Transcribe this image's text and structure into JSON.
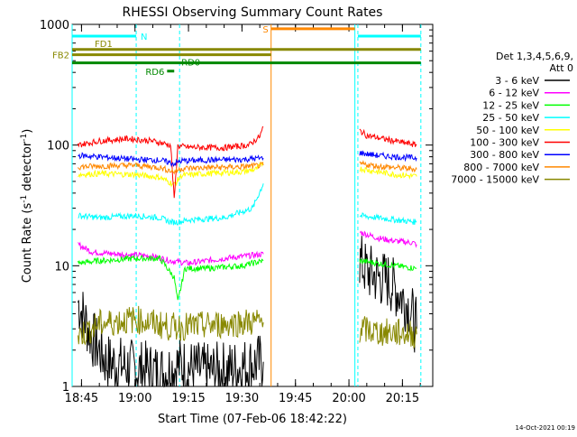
{
  "chart_data": {
    "type": "line",
    "title": "RHESSI Observing Summary Count Rates",
    "xlabel": "Start Time (07-Feb-06 18:42:22)",
    "ylabel_parts": [
      "Count Rate (s",
      "-1",
      " detector",
      "-1",
      ")"
    ],
    "y_scale": "log",
    "ylim": [
      1,
      1000
    ],
    "xlim": [
      "18:42:22",
      "20:23:30"
    ],
    "x_ticks": [
      "18:45",
      "19:00",
      "19:15",
      "19:30",
      "19:45",
      "20:00",
      "20:15"
    ],
    "y_tick_labels": [
      "1",
      "10",
      "100",
      "1000"
    ],
    "legend_title": [
      "Det 1,3,4,5,6,9,",
      "Att 0"
    ],
    "legend_position": "right",
    "grid": false,
    "series": [
      {
        "name": "3 - 6 keV",
        "color": "#000000",
        "segments": [
          {
            "x": [
              "18:44",
              "18:48",
              "18:52",
              "19:00",
              "19:08",
              "19:12",
              "19:20",
              "19:28",
              "19:36"
            ],
            "y": [
              5,
              2.5,
              1.6,
              1.4,
              1.3,
              1.5,
              1.3,
              1.4,
              1.6
            ]
          },
          {
            "x": [
              "20:03",
              "20:05",
              "20:08",
              "20:11",
              "20:14",
              "20:17",
              "20:19"
            ],
            "y": [
              11,
              9,
              8,
              7.5,
              6,
              4.5,
              3
            ]
          }
        ]
      },
      {
        "name": "6 - 12 keV",
        "color": "#ff00ff",
        "segments": [
          {
            "x": [
              "18:44",
              "18:48",
              "18:55",
              "19:05",
              "19:10",
              "19:15",
              "19:25",
              "19:36"
            ],
            "y": [
              15,
              13,
              12.5,
              12,
              11,
              10.5,
              11.5,
              12.5
            ]
          },
          {
            "x": [
              "20:03",
              "20:08",
              "20:13",
              "20:18",
              "20:19"
            ],
            "y": [
              19,
              17,
              16,
              15.5,
              15
            ]
          }
        ]
      },
      {
        "name": "12 - 25 keV",
        "color": "#00ff00",
        "segments": [
          {
            "x": [
              "18:44",
              "18:50",
              "19:00",
              "19:07",
              "19:11",
              "19:12",
              "19:14",
              "19:20",
              "19:30",
              "19:36"
            ],
            "y": [
              10.5,
              11,
              11.5,
              11.5,
              8,
              5,
              9.5,
              9.5,
              10,
              11
            ]
          },
          {
            "x": [
              "20:03",
              "20:08",
              "20:13",
              "20:19"
            ],
            "y": [
              11,
              10.5,
              10,
              9.5
            ]
          }
        ]
      },
      {
        "name": "25 - 50 keV",
        "color": "#00ffff",
        "segments": [
          {
            "x": [
              "18:44",
              "18:50",
              "19:00",
              "19:07",
              "19:10",
              "19:12",
              "19:15",
              "19:25",
              "19:33",
              "19:36"
            ],
            "y": [
              26,
              25,
              26,
              25,
              23,
              23,
              24,
              25,
              30,
              48
            ]
          },
          {
            "x": [
              "20:03",
              "20:08",
              "20:13",
              "20:19"
            ],
            "y": [
              26,
              25,
              24,
              23
            ]
          }
        ]
      },
      {
        "name": "50 - 100 keV",
        "color": "#ffff00",
        "segments": [
          {
            "x": [
              "18:44",
              "18:50",
              "19:00",
              "19:07",
              "19:11",
              "19:13",
              "19:20",
              "19:30",
              "19:34",
              "19:36"
            ],
            "y": [
              57,
              58,
              57,
              54,
              47,
              56,
              58,
              60,
              63,
              72
            ]
          },
          {
            "x": [
              "20:03",
              "20:08",
              "20:13",
              "20:19"
            ],
            "y": [
              64,
              60,
              57,
              55
            ]
          }
        ]
      },
      {
        "name": "100 - 300 keV",
        "color": "#ff0000",
        "segments": [
          {
            "x": [
              "18:44",
              "18:50",
              "18:58",
              "19:05",
              "19:10",
              "19:11",
              "19:12",
              "19:15",
              "19:25",
              "19:32",
              "19:35",
              "19:36"
            ],
            "y": [
              100,
              108,
              113,
              108,
              100,
              35,
              98,
              96,
              95,
              100,
              118,
              142
            ]
          },
          {
            "x": [
              "20:03",
              "20:05",
              "20:10",
              "20:15",
              "20:19"
            ],
            "y": [
              132,
              120,
              112,
              105,
              100
            ]
          }
        ]
      },
      {
        "name": "300 - 800 keV",
        "color": "#0000ff",
        "segments": [
          {
            "x": [
              "18:44",
              "18:50",
              "19:00",
              "19:07",
              "19:11",
              "19:13",
              "19:20",
              "19:30",
              "19:36"
            ],
            "y": [
              82,
              80,
              76,
              75,
              70,
              74,
              75,
              76,
              78
            ]
          },
          {
            "x": [
              "20:03",
              "20:08",
              "20:13",
              "20:19"
            ],
            "y": [
              86,
              82,
              80,
              78
            ]
          }
        ]
      },
      {
        "name": "800 - 7000 keV",
        "color": "#ff8800",
        "segments": [
          {
            "x": [
              "18:44",
              "18:50",
              "19:00",
              "19:07",
              "19:11",
              "19:13",
              "19:20",
              "19:30",
              "19:36"
            ],
            "y": [
              66,
              67,
              68,
              65,
              60,
              64,
              65,
              66,
              68
            ]
          },
          {
            "x": [
              "20:03",
              "20:08",
              "20:13",
              "20:19"
            ],
            "y": [
              70,
              67,
              65,
              63
            ]
          }
        ]
      },
      {
        "name": "7000 - 15000 keV",
        "color": "#888800",
        "segments": [
          {
            "x": [
              "18:44",
              "18:50",
              "19:00",
              "19:10",
              "19:20",
              "19:30",
              "19:36"
            ],
            "y": [
              2.6,
              3.3,
              3.6,
              3.1,
              3.2,
              3.4,
              3.4
            ]
          },
          {
            "x": [
              "20:03",
              "20:08",
              "20:13",
              "20:19"
            ],
            "y": [
              3.0,
              2.8,
              2.8,
              2.7
            ]
          }
        ]
      }
    ],
    "vlines": [
      {
        "time": "18:42:22",
        "color": "#00ffff",
        "style": "solid"
      },
      {
        "time": "19:00:20",
        "color": "#00ffff",
        "style": "dashed"
      },
      {
        "time": "19:12:30",
        "color": "#00ffff",
        "style": "dashed"
      },
      {
        "time": "19:38:10",
        "color": "#ff8800",
        "style": "solid"
      },
      {
        "time": "20:01:40",
        "color": "#00ffff",
        "style": "solid"
      },
      {
        "time": "20:02:30",
        "color": "#00ffff",
        "style": "dashed"
      },
      {
        "time": "20:20:10",
        "color": "#00ffff",
        "style": "dashed"
      }
    ],
    "flag_bars": [
      {
        "label": "N",
        "color": "#00ffff",
        "start": "18:42:22",
        "end": "19:00:20",
        "level": 800,
        "label_side": "right"
      },
      {
        "label": "N",
        "color": "#00ffff",
        "start": "20:02:30",
        "end": "20:20:10",
        "level": 800,
        "label_side": "none"
      },
      {
        "label": "S",
        "color": "#ff8800",
        "start": "19:38:10",
        "end": "20:01:40",
        "level": 920,
        "label_side": "left"
      },
      {
        "label": "FD1",
        "color": "#888800",
        "start": "18:42:22",
        "end": "19:38:10",
        "level": 620,
        "label_side": "above"
      },
      {
        "label": "FD1",
        "color": "#888800",
        "start": "19:38:10",
        "end": "20:20:10",
        "level": 620,
        "label_side": "none"
      },
      {
        "label": "FB2",
        "color": "#888800",
        "start": "18:42:22",
        "end": "19:38:10",
        "level": 560,
        "label_side": "left"
      },
      {
        "label": "RD0",
        "color": "#008800",
        "start": "18:42:22",
        "end": "20:20:10",
        "level": 480,
        "label_side": "above-mid"
      },
      {
        "label": "RD6",
        "color": "#008800",
        "start": "19:09:00",
        "end": "19:11:00",
        "level": 410,
        "label_side": "left"
      }
    ],
    "footer_date": "14-Oct-2021 00:19"
  }
}
